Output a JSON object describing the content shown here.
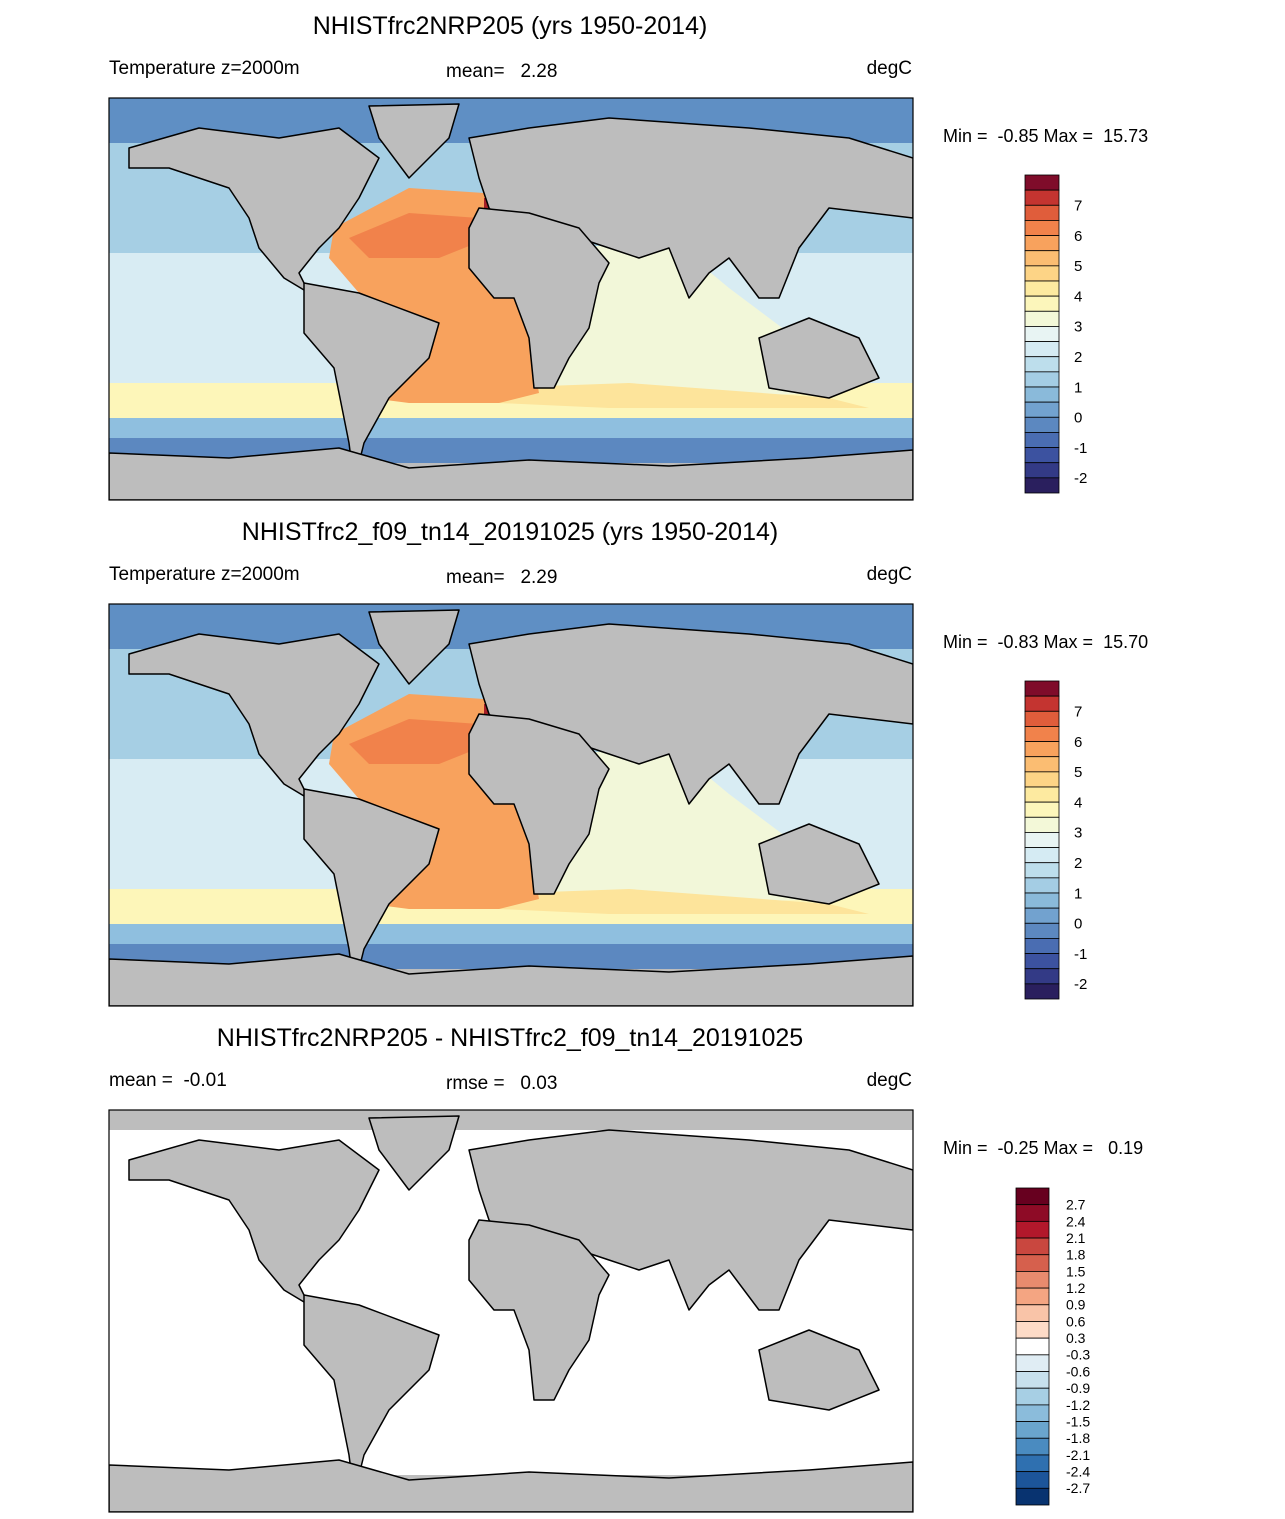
{
  "panels": [
    {
      "title": "NHISTfrc2NRP205 (yrs 1950-2014)",
      "left": "Temperature z=2000m",
      "center": "mean=   2.28",
      "right": "degC",
      "range": "Min =  -0.85 Max =  15.73",
      "ocean": "anomaly",
      "colorbar": {
        "labels": [
          "7",
          "6",
          "5",
          "4",
          "3",
          "2",
          "1",
          "0",
          "-1",
          "-2"
        ],
        "colors": [
          "#7f0c2a",
          "#c43430",
          "#e05d3b",
          "#f1824b",
          "#f8a25d",
          "#fbbd72",
          "#fdd486",
          "#fdeaa0",
          "#fcf6bb",
          "#f3f8d8",
          "#e8f4f3",
          "#d5ebf3",
          "#bddeec",
          "#a4cde4",
          "#8abada",
          "#72a2cf",
          "#5c88c0",
          "#4a6db2",
          "#3c52a0",
          "#333a86",
          "#2a1f5e"
        ]
      }
    },
    {
      "title": "NHISTfrc2_f09_tn14_20191025 (yrs 1950-2014)",
      "left": "Temperature z=2000m",
      "center": "mean=   2.29",
      "right": "degC",
      "range": "Min =  -0.83 Max =  15.70",
      "ocean": "anomaly",
      "colorbar": {
        "labels": [
          "7",
          "6",
          "5",
          "4",
          "3",
          "2",
          "1",
          "0",
          "-1",
          "-2"
        ],
        "colors": [
          "#7f0c2a",
          "#c43430",
          "#e05d3b",
          "#f1824b",
          "#f8a25d",
          "#fbbd72",
          "#fdd486",
          "#fdeaa0",
          "#fcf6bb",
          "#f3f8d8",
          "#e8f4f3",
          "#d5ebf3",
          "#bddeec",
          "#a4cde4",
          "#8abada",
          "#72a2cf",
          "#5c88c0",
          "#4a6db2",
          "#3c52a0",
          "#333a86",
          "#2a1f5e"
        ]
      }
    },
    {
      "title": "NHISTfrc2NRP205 - NHISTfrc2_f09_tn14_20191025",
      "left": "mean =  -0.01",
      "center": "rmse =   0.03",
      "right": "degC",
      "range": "Min =  -0.25 Max =   0.19",
      "ocean": "difference",
      "colorbar": {
        "labels": [
          "2.7",
          "2.4",
          "2.1",
          "1.8",
          "1.5",
          "1.2",
          "0.9",
          "0.6",
          "0.3",
          "-0.3",
          "-0.6",
          "-0.9",
          "-1.2",
          "-1.5",
          "-1.8",
          "-2.1",
          "-2.4",
          "-2.7"
        ],
        "colors": [
          "#67001f",
          "#8e0b26",
          "#b2182b",
          "#c9473f",
          "#d6604d",
          "#e88b6e",
          "#f4a582",
          "#f9c4a8",
          "#fddbc7",
          "#ffffff",
          "#e0edf4",
          "#c7e0ed",
          "#a7cfe4",
          "#8bbcdb",
          "#6aa5cd",
          "#4a8bc0",
          "#2f70b0",
          "#1c559a",
          "#083370"
        ]
      }
    }
  ]
}
